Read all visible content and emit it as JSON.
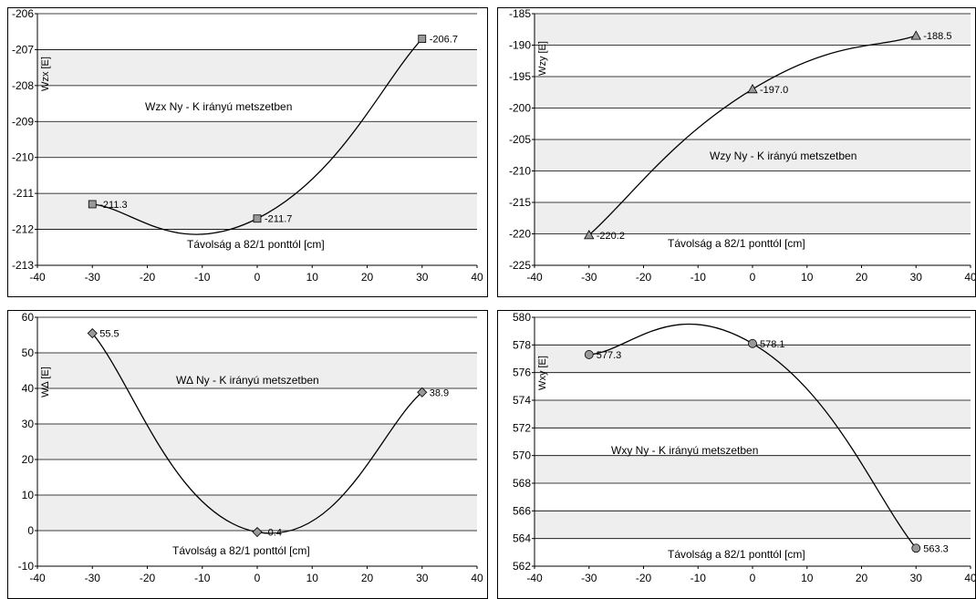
{
  "chart_data": [
    {
      "type": "line",
      "title": "Wzx  Ny - K irányú metszetben",
      "xlabel": "Távolság a 82/1 ponttól [cm]",
      "ylabel": "Wzx [E]",
      "x": [
        -30,
        0,
        30
      ],
      "values": [
        -211.3,
        -211.7,
        -206.7
      ],
      "data_labels": [
        "-211.3",
        "-211.7",
        "-206.7"
      ],
      "marker": "square",
      "xlim": [
        -40,
        40
      ],
      "ylim": [
        -213,
        -206
      ],
      "xticks": [
        -40,
        -30,
        -20,
        -10,
        0,
        10,
        20,
        30,
        40
      ],
      "yticks": [
        -213,
        -212,
        -211,
        -210,
        -209,
        -208,
        -207,
        -206
      ],
      "grid": true,
      "smooth": true
    },
    {
      "type": "line",
      "title": "Wzy  Ny - K irányú metszetben",
      "xlabel": "Távolság a 82/1 ponttól [cm]",
      "ylabel": "Wzy [E]",
      "x": [
        -30,
        0,
        30
      ],
      "values": [
        -220.2,
        -197.0,
        -188.5
      ],
      "data_labels": [
        "-220.2",
        "-197.0",
        "-188.5"
      ],
      "marker": "triangle",
      "xlim": [
        -40,
        40
      ],
      "ylim": [
        -225,
        -185
      ],
      "xticks": [
        -40,
        -30,
        -20,
        -10,
        0,
        10,
        20,
        30,
        40
      ],
      "yticks": [
        -225,
        -220,
        -215,
        -210,
        -205,
        -200,
        -195,
        -190,
        -185
      ],
      "grid": true,
      "smooth": true
    },
    {
      "type": "line",
      "title": "W∆  Ny - K irányú metszetben",
      "xlabel": "Távolság a 82/1 ponttól [cm]",
      "ylabel": "W∆ [E]",
      "x": [
        -30,
        0,
        30
      ],
      "values": [
        55.5,
        -0.4,
        38.9
      ],
      "data_labels": [
        "55.5",
        "-0.4",
        "38.9"
      ],
      "marker": "diamond",
      "xlim": [
        -40,
        40
      ],
      "ylim": [
        -10,
        60
      ],
      "xticks": [
        -40,
        -30,
        -20,
        -10,
        0,
        10,
        20,
        30,
        40
      ],
      "yticks": [
        -10,
        0,
        10,
        20,
        30,
        40,
        50,
        60
      ],
      "grid": true,
      "smooth": true
    },
    {
      "type": "line",
      "title": "Wxy  Ny - K irányú metszetben",
      "xlabel": "Távolság a 82/1 ponttól [cm]",
      "ylabel": "Wxy [E]",
      "x": [
        -30,
        0,
        30
      ],
      "values": [
        577.3,
        578.1,
        563.3
      ],
      "data_labels": [
        "577.3",
        "578.1",
        "563.3"
      ],
      "marker": "circle",
      "xlim": [
        -40,
        40
      ],
      "ylim": [
        562,
        580
      ],
      "xticks": [
        -40,
        -30,
        -20,
        -10,
        0,
        10,
        20,
        30,
        40
      ],
      "yticks": [
        562,
        564,
        566,
        568,
        570,
        572,
        574,
        576,
        578,
        580
      ],
      "grid": true,
      "smooth": true
    }
  ],
  "colors": {
    "band": "#eeeeee",
    "marker_fill": "#999999",
    "line": "#000000"
  }
}
